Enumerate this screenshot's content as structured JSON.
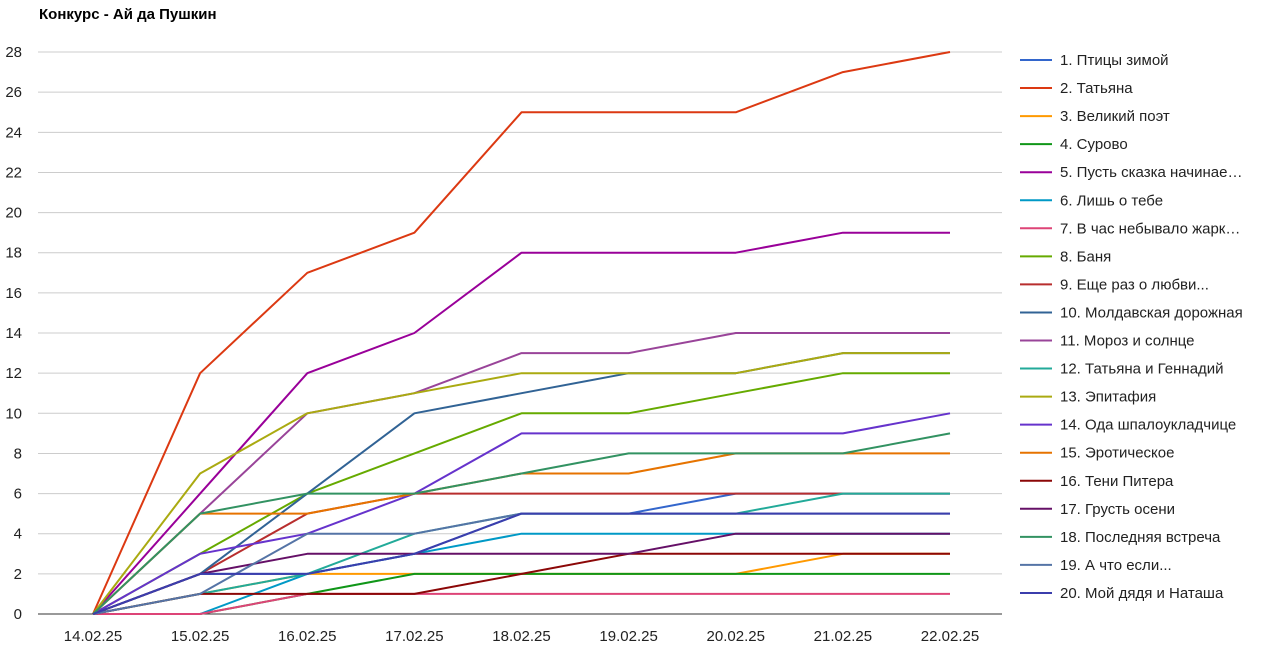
{
  "chart_data": {
    "type": "line",
    "title": "Конкурс - Ай да Пушкин",
    "xlabel": "",
    "ylabel": "",
    "categories": [
      "14.02.25",
      "15.02.25",
      "16.02.25",
      "17.02.25",
      "18.02.25",
      "19.02.25",
      "20.02.25",
      "21.02.25",
      "22.02.25"
    ],
    "ylim": [
      0,
      29
    ],
    "yticks": [
      0,
      2,
      4,
      6,
      8,
      10,
      12,
      14,
      16,
      18,
      20,
      22,
      24,
      26,
      28
    ],
    "grid": "horizontal",
    "legend": "right",
    "series": [
      {
        "name": "1. Птицы зимой",
        "color": "#3366cc",
        "values": [
          0,
          2,
          2,
          3,
          5,
          5,
          6,
          6,
          6
        ]
      },
      {
        "name": "2. Татьяна",
        "color": "#dc3912",
        "values": [
          0,
          12,
          17,
          19,
          25,
          25,
          25,
          27,
          28
        ]
      },
      {
        "name": "3. Великий поэт",
        "color": "#ff9900",
        "values": [
          0,
          1,
          2,
          2,
          2,
          2,
          2,
          3,
          3
        ]
      },
      {
        "name": "4. Сурово",
        "color": "#109618",
        "values": [
          0,
          0,
          1,
          2,
          2,
          2,
          2,
          2,
          2
        ]
      },
      {
        "name": "5. Пусть сказка начинае…",
        "color": "#990099",
        "values": [
          0,
          6,
          12,
          14,
          18,
          18,
          18,
          19,
          19
        ]
      },
      {
        "name": "6. Лишь о тебе",
        "color": "#0099c6",
        "values": [
          0,
          0,
          2,
          3,
          4,
          4,
          4,
          4,
          4
        ]
      },
      {
        "name": "7. В час небывало жарк…",
        "color": "#dd4477",
        "values": [
          0,
          0,
          1,
          1,
          1,
          1,
          1,
          1,
          1
        ]
      },
      {
        "name": "8. Баня",
        "color": "#66aa00",
        "values": [
          0,
          3,
          6,
          8,
          10,
          10,
          11,
          12,
          12
        ]
      },
      {
        "name": "9. Еще раз о любви...",
        "color": "#b82e2e",
        "values": [
          0,
          2,
          5,
          6,
          6,
          6,
          6,
          6,
          6
        ]
      },
      {
        "name": "10. Молдавская дорожная",
        "color": "#316395",
        "values": [
          0,
          2,
          6,
          10,
          11,
          12,
          12,
          13,
          13
        ]
      },
      {
        "name": "11. Мороз и солнце",
        "color": "#994499",
        "values": [
          0,
          5,
          10,
          11,
          13,
          13,
          14,
          14,
          14
        ]
      },
      {
        "name": "12. Татьяна и Геннадий",
        "color": "#22aa99",
        "values": [
          0,
          1,
          2,
          4,
          5,
          5,
          5,
          6,
          6
        ]
      },
      {
        "name": "13. Эпитафия",
        "color": "#aaaa11",
        "values": [
          0,
          7,
          10,
          11,
          12,
          12,
          12,
          13,
          13
        ]
      },
      {
        "name": "14. Ода шпалоукладчице",
        "color": "#6633cc",
        "values": [
          0,
          3,
          4,
          6,
          9,
          9,
          9,
          9,
          10
        ]
      },
      {
        "name": "15. Эротическое",
        "color": "#e67300",
        "values": [
          0,
          5,
          5,
          6,
          7,
          7,
          8,
          8,
          8
        ]
      },
      {
        "name": "16. Тени Питера",
        "color": "#8b0707",
        "values": [
          0,
          1,
          1,
          1,
          2,
          3,
          3,
          3,
          3
        ]
      },
      {
        "name": "17. Грусть осени",
        "color": "#651067",
        "values": [
          0,
          2,
          3,
          3,
          3,
          3,
          4,
          4,
          4
        ]
      },
      {
        "name": "18. Последняя встреча",
        "color": "#329262",
        "values": [
          0,
          5,
          6,
          6,
          7,
          8,
          8,
          8,
          9
        ]
      },
      {
        "name": "19. А что если...",
        "color": "#5574a6",
        "values": [
          0,
          1,
          4,
          4,
          5,
          5,
          5,
          5,
          5
        ]
      },
      {
        "name": "20. Мой дядя и Наташа",
        "color": "#3b3eac",
        "values": [
          0,
          2,
          2,
          3,
          5,
          5,
          5,
          5,
          5
        ]
      }
    ]
  }
}
